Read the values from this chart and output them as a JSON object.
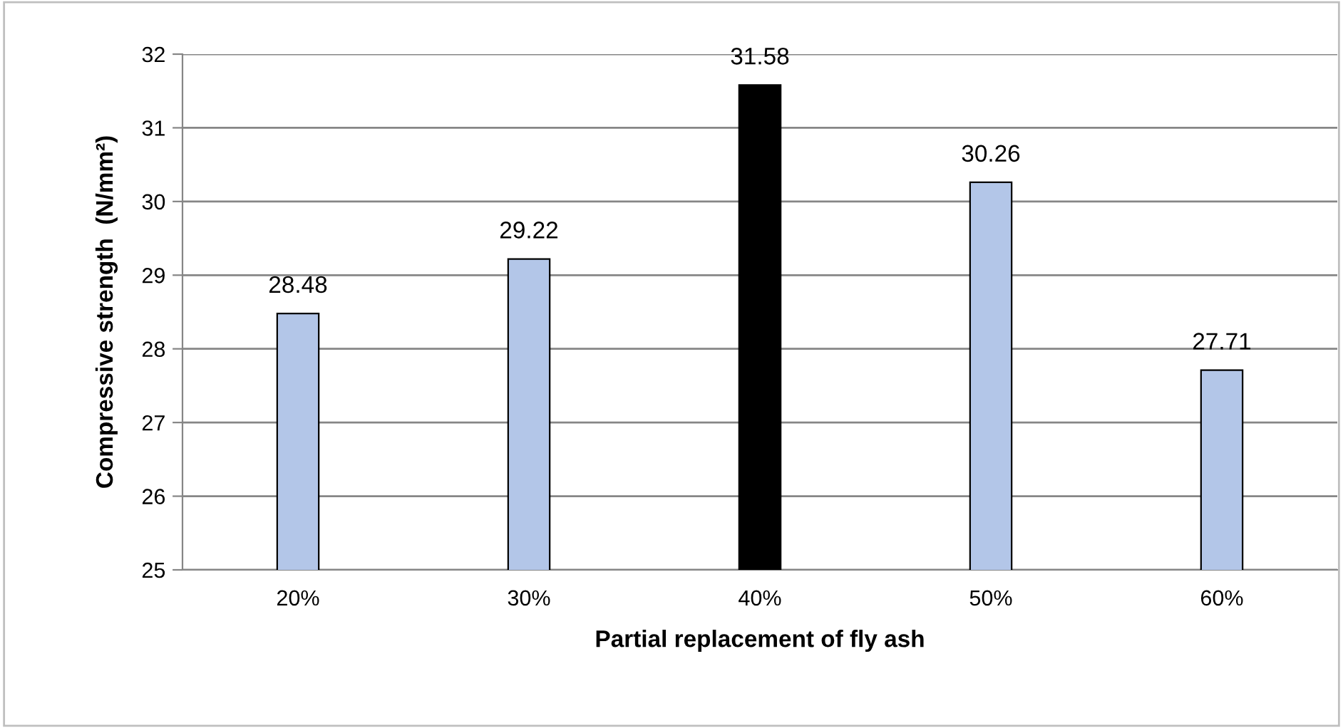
{
  "chart_data": {
    "type": "bar",
    "xlabel": "Partial replacement of fly ash",
    "ylabel": "Compressive strength  (N/mm²)",
    "categories": [
      "20%",
      "30%",
      "40%",
      "50%",
      "60%"
    ],
    "values": [
      28.48,
      29.22,
      31.58,
      30.26,
      27.71
    ],
    "colors": [
      "#b3c6e8",
      "#b3c6e8",
      "#000000",
      "#b3c6e8",
      "#b3c6e8"
    ],
    "ylim": [
      25,
      32
    ],
    "yticks": [
      25,
      26,
      27,
      28,
      29,
      30,
      31,
      32
    ],
    "grid": "y",
    "data_labels": true,
    "legend": false
  }
}
